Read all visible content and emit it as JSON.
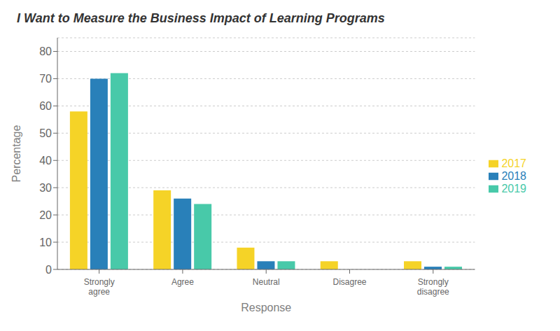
{
  "chart_data": {
    "type": "bar",
    "title": "I Want to Measure the Business Impact of Learning Programs",
    "categories": [
      "Strongly\nagree",
      "Agree",
      "Neutral",
      "Disagree",
      "Strongly\ndisagree"
    ],
    "series": [
      {
        "name": "2017",
        "color": "#F5D327",
        "values": [
          58,
          29,
          8,
          3,
          3
        ]
      },
      {
        "name": "2018",
        "color": "#2980B9",
        "values": [
          70,
          26,
          3,
          0,
          1
        ]
      },
      {
        "name": "2019",
        "color": "#48C9A9",
        "values": [
          72,
          24,
          3,
          0,
          1
        ]
      }
    ],
    "xlabel": "Response",
    "ylabel": "Percentage",
    "ylim": [
      0,
      85
    ],
    "yticks": [
      0,
      10,
      20,
      30,
      40,
      50,
      60,
      70,
      80
    ],
    "grid": true,
    "legend": "right"
  }
}
